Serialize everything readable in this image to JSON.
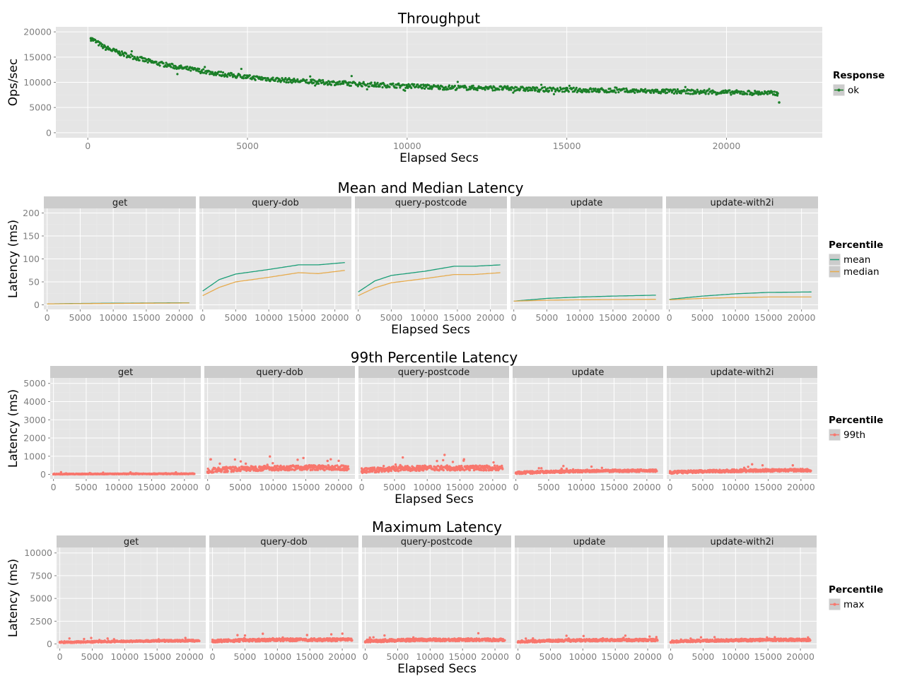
{
  "colors": {
    "panel_bg": "#e5e5e5",
    "strip_bg": "#cccccc",
    "grid_major": "#ffffff",
    "grid_minor": "#ebebeb",
    "tick_text": "#7f7f7f",
    "ok": "#1b7f28",
    "mean": "#1b9e77",
    "median": "#e6ab4e",
    "p99": "#f8766d",
    "max": "#f8766d"
  },
  "chart_data": [
    {
      "type": "scatter",
      "title": "Throughput",
      "xlabel": "Elapsed Secs",
      "ylabel": "Ops/sec",
      "xlim": [
        -1000,
        23000
      ],
      "ylim": [
        -1000,
        21000
      ],
      "xticks": [
        0,
        5000,
        10000,
        15000,
        20000
      ],
      "yticks": [
        0,
        5000,
        10000,
        15000,
        20000
      ],
      "grid": true,
      "legend": {
        "title": "Response",
        "position": "right",
        "entries": [
          {
            "label": "ok",
            "color": "#1b7f28"
          }
        ]
      },
      "series": [
        {
          "name": "ok",
          "x": [
            100,
            500,
            1000,
            2000,
            3000,
            4000,
            5000,
            6000,
            7000,
            8000,
            9000,
            10000,
            11000,
            12000,
            13000,
            14000,
            15000,
            16000,
            17000,
            18000,
            19000,
            20000,
            21000,
            21600
          ],
          "y": [
            18700,
            17000,
            15800,
            14000,
            12800,
            11800,
            11000,
            10500,
            10100,
            9800,
            9500,
            9300,
            9000,
            8900,
            8800,
            8600,
            8500,
            8400,
            8300,
            8200,
            8100,
            8000,
            7900,
            7800
          ]
        }
      ]
    },
    {
      "type": "line",
      "title": "Mean and Median Latency",
      "xlabel": "Elapsed Secs",
      "ylabel": "Latency (ms)",
      "xlim": [
        -500,
        22500
      ],
      "ylim": [
        -10,
        210
      ],
      "xticks": [
        0,
        5000,
        10000,
        15000,
        20000
      ],
      "yticks": [
        0,
        50,
        100,
        150,
        200
      ],
      "grid": true,
      "legend": {
        "title": "Percentile",
        "position": "right",
        "entries": [
          {
            "label": "mean",
            "color": "#1b9e77"
          },
          {
            "label": "median",
            "color": "#e6ab4e"
          }
        ]
      },
      "facets": [
        {
          "name": "get",
          "series": [
            {
              "name": "mean",
              "x": [
                0,
                5000,
                10000,
                15000,
                21500
              ],
              "y": [
                2,
                3,
                3.5,
                4,
                4.5
              ]
            },
            {
              "name": "median",
              "x": [
                0,
                5000,
                10000,
                15000,
                21500
              ],
              "y": [
                2,
                2.5,
                3,
                3.5,
                4
              ]
            }
          ]
        },
        {
          "name": "query-dob",
          "series": [
            {
              "name": "mean",
              "x": [
                0,
                2500,
                5000,
                10000,
                14500,
                17500,
                21500
              ],
              "y": [
                30,
                55,
                67,
                77,
                87,
                87,
                92
              ]
            },
            {
              "name": "median",
              "x": [
                0,
                2500,
                5000,
                10000,
                14500,
                17500,
                21500
              ],
              "y": [
                20,
                38,
                50,
                60,
                70,
                68,
                75
              ]
            }
          ]
        },
        {
          "name": "query-postcode",
          "series": [
            {
              "name": "mean",
              "x": [
                0,
                2500,
                5000,
                10000,
                14500,
                17500,
                21500
              ],
              "y": [
                28,
                52,
                64,
                73,
                84,
                84,
                87
              ]
            },
            {
              "name": "median",
              "x": [
                0,
                2500,
                5000,
                10000,
                14500,
                17500,
                21500
              ],
              "y": [
                20,
                37,
                48,
                57,
                66,
                66,
                70
              ]
            }
          ]
        },
        {
          "name": "update",
          "series": [
            {
              "name": "mean",
              "x": [
                0,
                5000,
                10000,
                15000,
                21500
              ],
              "y": [
                8,
                14,
                17,
                19,
                21
              ]
            },
            {
              "name": "median",
              "x": [
                0,
                5000,
                10000,
                15000,
                21500
              ],
              "y": [
                8,
                10,
                11,
                11.5,
                12
              ]
            }
          ]
        },
        {
          "name": "update-with2i",
          "series": [
            {
              "name": "mean",
              "x": [
                0,
                5000,
                10000,
                15000,
                21500
              ],
              "y": [
                12,
                19,
                24,
                27,
                28
              ]
            },
            {
              "name": "median",
              "x": [
                0,
                5000,
                10000,
                15000,
                21500
              ],
              "y": [
                11,
                14,
                16,
                17,
                17
              ]
            }
          ]
        }
      ]
    },
    {
      "type": "scatter",
      "title": "99th Percentile Latency",
      "xlabel": "Elapsed Secs",
      "ylabel": "Latency (ms)",
      "xlim": [
        -500,
        22500
      ],
      "ylim": [
        -250,
        5300
      ],
      "xticks": [
        0,
        5000,
        10000,
        15000,
        20000
      ],
      "yticks": [
        0,
        1000,
        2000,
        3000,
        4000,
        5000
      ],
      "grid": true,
      "legend": {
        "title": "Percentile",
        "position": "right",
        "entries": [
          {
            "label": "99th",
            "color": "#f8766d"
          }
        ]
      },
      "facets": [
        {
          "name": "get",
          "x": [
            0,
            5000,
            10000,
            15000,
            21500
          ],
          "y": [
            10,
            15,
            20,
            25,
            30
          ]
        },
        {
          "name": "query-dob",
          "x": [
            0,
            5000,
            10000,
            15000,
            21500
          ],
          "y": [
            150,
            250,
            300,
            320,
            300
          ]
        },
        {
          "name": "query-postcode",
          "x": [
            0,
            5000,
            10000,
            15000,
            21500
          ],
          "y": [
            150,
            250,
            300,
            300,
            300
          ]
        },
        {
          "name": "update",
          "x": [
            0,
            5000,
            10000,
            15000,
            21500
          ],
          "y": [
            60,
            110,
            150,
            170,
            180
          ]
        },
        {
          "name": "update-with2i",
          "x": [
            0,
            5000,
            10000,
            15000,
            21500
          ],
          "y": [
            80,
            130,
            170,
            190,
            200
          ]
        }
      ]
    },
    {
      "type": "scatter",
      "title": "Maximum Latency",
      "xlabel": "Elapsed Secs",
      "ylabel": "Latency (ms)",
      "xlim": [
        -500,
        22500
      ],
      "ylim": [
        -500,
        10600
      ],
      "xticks": [
        0,
        5000,
        10000,
        15000,
        20000
      ],
      "yticks": [
        0,
        2500,
        5000,
        7500,
        10000
      ],
      "grid": true,
      "legend": {
        "title": "Percentile",
        "position": "right",
        "entries": [
          {
            "label": "max",
            "color": "#f8766d"
          }
        ]
      },
      "facets": [
        {
          "name": "get",
          "x": [
            0,
            5000,
            10000,
            15000,
            21500
          ],
          "y": [
            150,
            200,
            250,
            300,
            320
          ]
        },
        {
          "name": "query-dob",
          "x": [
            0,
            5000,
            10000,
            15000,
            21500
          ],
          "y": [
            250,
            350,
            400,
            400,
            400
          ]
        },
        {
          "name": "query-postcode",
          "x": [
            0,
            5000,
            10000,
            15000,
            21500
          ],
          "y": [
            250,
            350,
            400,
            400,
            400
          ]
        },
        {
          "name": "update",
          "x": [
            0,
            5000,
            10000,
            15000,
            21500
          ],
          "y": [
            200,
            300,
            350,
            380,
            380
          ]
        },
        {
          "name": "update-with2i",
          "x": [
            0,
            5000,
            10000,
            15000,
            21500
          ],
          "y": [
            200,
            300,
            350,
            400,
            400
          ]
        }
      ]
    }
  ]
}
